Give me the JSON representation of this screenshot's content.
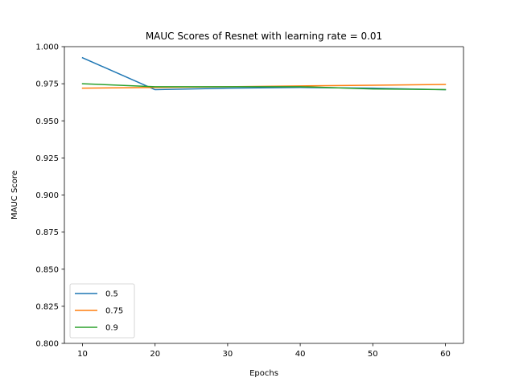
{
  "chart_data": {
    "type": "line",
    "title": "MAUC Scores of Resnet with learning rate = 0.01",
    "xlabel": "Epochs",
    "ylabel": "MAUC Score",
    "x": [
      10,
      20,
      30,
      40,
      50,
      60
    ],
    "xlim": [
      7.5,
      62.5
    ],
    "ylim": [
      0.8,
      1.0
    ],
    "xticks": [
      10,
      20,
      30,
      40,
      50,
      60
    ],
    "yticks": [
      0.8,
      0.825,
      0.85,
      0.875,
      0.9,
      0.925,
      0.95,
      0.975,
      1.0
    ],
    "ytick_labels": [
      "0.800",
      "0.825",
      "0.850",
      "0.875",
      "0.900",
      "0.925",
      "0.950",
      "0.975",
      "1.000"
    ],
    "grid": false,
    "legend": "lower-left",
    "series": [
      {
        "name": "0.5",
        "color": "#1f77b4",
        "values": [
          0.9925,
          0.971,
          0.972,
          0.9725,
          0.972,
          0.971
        ]
      },
      {
        "name": "0.75",
        "color": "#ff7f0e",
        "values": [
          0.972,
          0.9725,
          0.973,
          0.9735,
          0.974,
          0.9745
        ]
      },
      {
        "name": "0.9",
        "color": "#2ca02c",
        "values": [
          0.975,
          0.973,
          0.973,
          0.973,
          0.9715,
          0.971
        ]
      }
    ]
  }
}
